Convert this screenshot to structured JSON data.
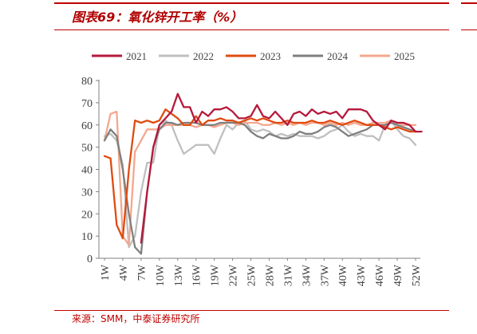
{
  "header": {
    "title": "图表69：氧化锌开工率（%）"
  },
  "footer": {
    "source": "来源：SMM，中泰证券研究所"
  },
  "chart_data": {
    "type": "line",
    "title": "图表69：氧化锌开工率（%）",
    "xlabel": "",
    "ylabel": "",
    "ylim": [
      0,
      80
    ],
    "yticks": [
      "0",
      "10",
      "20",
      "30",
      "40",
      "50",
      "60",
      "70",
      "80"
    ],
    "xticks": [
      "1W",
      "4W",
      "7W",
      "10W",
      "13W",
      "16W",
      "19W",
      "22W",
      "25W",
      "28W",
      "31W",
      "34W",
      "37W",
      "40W",
      "43W",
      "46W",
      "49W",
      "52W"
    ],
    "grid": false,
    "legend": "top",
    "series": [
      {
        "name": "2021",
        "color": "#b5193c",
        "weeks": [
          7,
          8,
          9,
          10,
          11,
          12,
          13,
          14,
          15,
          16,
          17,
          18,
          19,
          20,
          21,
          22,
          23,
          24,
          25,
          26,
          27,
          28,
          29,
          30,
          31,
          32,
          33,
          34,
          35,
          36,
          37,
          38,
          39,
          40,
          41,
          42,
          43,
          44,
          45,
          46,
          47,
          48,
          49,
          50,
          51,
          52,
          53
        ],
        "values": [
          7,
          30,
          50,
          60,
          63,
          66,
          74,
          68,
          68,
          61,
          66,
          64,
          67,
          67,
          68,
          66,
          63,
          63,
          64,
          69,
          64,
          63,
          66,
          63,
          60,
          65,
          66,
          64,
          67,
          65,
          66,
          65,
          66,
          63,
          67,
          67,
          67,
          66,
          62,
          60,
          58,
          62,
          61,
          61,
          60,
          57,
          57
        ]
      },
      {
        "name": "2022",
        "color": "#bfbfbf",
        "weeks": [
          1,
          2,
          3,
          4,
          5,
          6,
          7,
          8,
          9,
          10,
          11,
          12,
          13,
          14,
          15,
          16,
          17,
          18,
          19,
          20,
          21,
          22,
          23,
          24,
          25,
          26,
          27,
          28,
          29,
          30,
          31,
          32,
          33,
          34,
          35,
          36,
          37,
          38,
          39,
          40,
          41,
          42,
          43,
          44,
          45,
          46,
          47,
          48,
          49,
          50,
          51,
          52
        ],
        "values": [
          55,
          56,
          53,
          42,
          5,
          10,
          30,
          43,
          43,
          60,
          62,
          60,
          53,
          47,
          49,
          51,
          51,
          51,
          47,
          54,
          60,
          58,
          61,
          62,
          58,
          57,
          58,
          57,
          55,
          56,
          55,
          56,
          55,
          55,
          55,
          54,
          55,
          57,
          58,
          60,
          57,
          55,
          56,
          55,
          55,
          53,
          60,
          62,
          58,
          55,
          54,
          51
        ]
      },
      {
        "name": "2023",
        "color": "#e04b10",
        "weeks": [
          1,
          2,
          3,
          4,
          5,
          6,
          7,
          8,
          9,
          10,
          11,
          12,
          13,
          14,
          15,
          16,
          17,
          18,
          19,
          20,
          21,
          22,
          23,
          24,
          25,
          26,
          27,
          28,
          29,
          30,
          31,
          32,
          33,
          34,
          35,
          36,
          37,
          38,
          39,
          40,
          41,
          42,
          43,
          44,
          45,
          46,
          47,
          48,
          49,
          50,
          51,
          52
        ],
        "values": [
          46,
          45,
          15,
          9,
          40,
          62,
          61,
          62,
          61,
          62,
          67,
          65,
          63,
          60,
          60,
          64,
          60,
          62,
          62,
          63,
          62,
          62,
          61,
          62,
          63,
          62,
          63,
          62,
          61,
          61,
          62,
          61,
          61,
          61,
          62,
          61,
          61,
          62,
          61,
          60,
          61,
          62,
          61,
          60,
          60,
          60,
          59,
          58,
          59,
          58,
          57,
          57
        ]
      },
      {
        "name": "2024",
        "color": "#7f7f7f",
        "weeks": [
          1,
          2,
          3,
          4,
          5,
          6,
          7,
          8,
          9,
          10,
          11,
          12,
          13,
          14,
          15,
          16,
          17,
          18,
          19,
          20,
          21,
          22,
          23,
          24,
          25,
          26,
          27,
          28,
          29,
          30,
          31,
          32,
          33,
          34,
          35,
          36,
          37,
          38,
          39,
          40,
          41,
          42,
          43,
          44,
          45,
          46,
          47,
          48,
          49,
          50,
          51,
          52
        ],
        "values": [
          53,
          58,
          55,
          40,
          20,
          5,
          2,
          30,
          50,
          58,
          61,
          61,
          60,
          61,
          61,
          61,
          60,
          60,
          60,
          61,
          61,
          61,
          61,
          60,
          57,
          55,
          54,
          56,
          55,
          54,
          54,
          55,
          57,
          56,
          56,
          57,
          59,
          60,
          59,
          57,
          55,
          56,
          57,
          58,
          60,
          60,
          60,
          61,
          60,
          59,
          58,
          57
        ]
      },
      {
        "name": "2025",
        "color": "#f4a78f",
        "weeks": [
          1,
          2,
          3,
          4,
          5,
          6,
          7,
          8,
          9,
          10,
          11,
          12,
          13,
          14,
          15,
          16,
          17,
          18,
          19,
          20,
          21,
          22,
          23,
          24,
          25,
          26,
          27,
          28,
          29,
          30,
          31,
          32,
          33,
          34,
          35,
          36,
          37,
          38,
          39,
          40,
          41,
          42,
          43,
          44,
          45,
          46,
          47,
          48,
          49,
          50,
          51,
          52
        ],
        "values": [
          53,
          65,
          66,
          10,
          6,
          48,
          53,
          58,
          58,
          58,
          60,
          60,
          60,
          60,
          60,
          59,
          60,
          60,
          59,
          60,
          61,
          61,
          60,
          61,
          61,
          61,
          60,
          60,
          61,
          60,
          61,
          60,
          61,
          60,
          61,
          61,
          60,
          61,
          60,
          61,
          60,
          61,
          60,
          60,
          61,
          61,
          61,
          62,
          61,
          60,
          60,
          60
        ]
      }
    ]
  }
}
